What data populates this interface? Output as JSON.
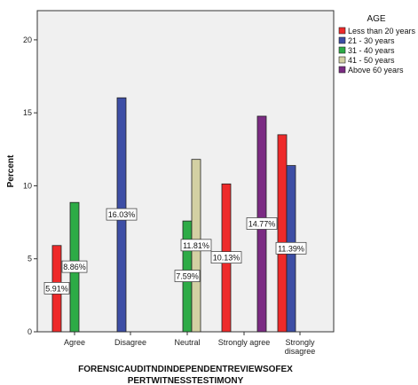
{
  "chart_data": {
    "type": "bar",
    "ylabel": "Percent",
    "xlabel_lines": [
      "FORENSICAUDITNDINDEPENDENTREVIEWSOFEX",
      "PERTWITNESSTESTIMONY"
    ],
    "ylim": [
      0,
      22
    ],
    "yticks": [
      "0",
      "5",
      "10",
      "15",
      "20"
    ],
    "categories": [
      "Agree",
      "Disagree",
      "Neutral",
      "Strongly agree",
      "Strongly disagree"
    ],
    "legend_title": "AGE",
    "legend_position": "right",
    "series": [
      {
        "name": "Less than 20 years",
        "color": "#ee2a2a",
        "values": [
          5.91,
          null,
          null,
          10.13,
          13.5
        ]
      },
      {
        "name": "21 - 30 years",
        "color": "#3d4ea5",
        "values": [
          null,
          16.03,
          null,
          null,
          11.39
        ]
      },
      {
        "name": "31 - 40 years",
        "color": "#2dab46",
        "values": [
          8.86,
          null,
          7.59,
          null,
          null
        ]
      },
      {
        "name": "41 - 50 years",
        "color": "#d3d0a3",
        "values": [
          null,
          null,
          11.81,
          null,
          null
        ]
      },
      {
        "name": "Above 60 years",
        "color": "#7b2b83",
        "values": [
          null,
          null,
          null,
          14.77,
          null
        ]
      }
    ],
    "data_labels": [
      {
        "category": "Agree",
        "series": "Less than 20 years",
        "text": "5.91%"
      },
      {
        "category": "Agree",
        "series": "31 - 40 years",
        "text": "8.86%"
      },
      {
        "category": "Disagree",
        "series": "21 - 30 years",
        "text": "16.03%"
      },
      {
        "category": "Neutral",
        "series": "31 - 40 years",
        "text": "7.59%"
      },
      {
        "category": "Neutral",
        "series": "41 - 50 years",
        "text": "11.81%"
      },
      {
        "category": "Strongly agree",
        "series": "Less than 20 years",
        "text": "10.13%"
      },
      {
        "category": "Strongly agree",
        "series": "Above 60 years",
        "text": "14.77%"
      },
      {
        "category": "Strongly disagree",
        "series": "21 - 30 years",
        "text": "11.39%"
      }
    ],
    "colors": {
      "plot_background": "#f0f0f0",
      "frame": "#333333"
    }
  }
}
